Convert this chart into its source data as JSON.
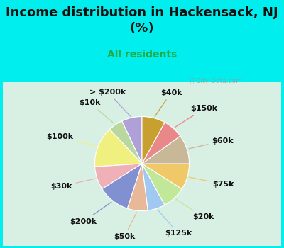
{
  "title": "Income distribution in Hackensack, NJ\n(%)",
  "subtitle": "All residents",
  "title_color": "#111111",
  "subtitle_color": "#22aa44",
  "bg_outer": "#00eeee",
  "bg_chart": "#d8f0e4",
  "watermark": "ⓘ City-Data.com",
  "labels": [
    "> $200k",
    "$10k",
    "$100k",
    "$30k",
    "$200k",
    "$50k",
    "$125k",
    "$20k",
    "$75k",
    "$60k",
    "$150k",
    "$40k"
  ],
  "values": [
    7,
    5,
    14,
    8,
    11,
    7,
    6,
    8,
    9,
    10,
    7,
    8
  ],
  "colors": [
    "#b0a0d8",
    "#b8d8a0",
    "#f0f080",
    "#f0b0b8",
    "#8090d0",
    "#e8b898",
    "#a0c8f0",
    "#c0e898",
    "#f0c868",
    "#c8b898",
    "#e88888",
    "#c8a030"
  ],
  "label_fontsize": 8,
  "startangle": 90,
  "title_fontsize": 13,
  "subtitle_fontsize": 10
}
